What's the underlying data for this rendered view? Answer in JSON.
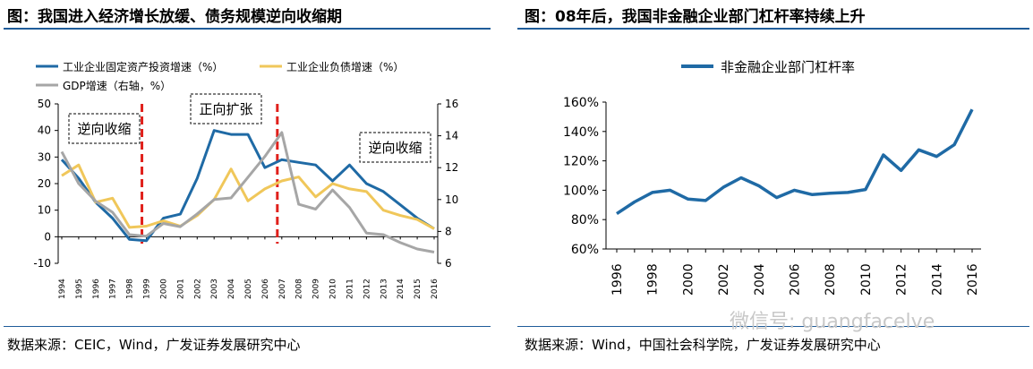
{
  "left_panel": {
    "title": "图：我国进入经济增长放缓、债务规模逆向收缩期",
    "source": "数据来源：CEIC，Wind，广发证券发展研究中心"
  },
  "right_panel": {
    "title": "图：08年后，我国非金融企业部门杠杆率持续上升",
    "source": "数据来源：Wind，中国社会科学院，广发证券发展研究中心"
  },
  "watermark": "微信号: guangfacelve",
  "chart_data": [
    {
      "type": "line",
      "x": [
        "1994",
        "1995",
        "1996",
        "1997",
        "1998",
        "1999",
        "2000",
        "2001",
        "2002",
        "2003",
        "2004",
        "2005",
        "2006",
        "2007",
        "2008",
        "2009",
        "2010",
        "2011",
        "2012",
        "2013",
        "2014",
        "2015",
        "2016"
      ],
      "series": [
        {
          "name": "工业企业固定资产投资增速（%）",
          "axis": "left",
          "color": "#1f6aa5",
          "values": [
            29,
            22,
            13,
            7,
            -1,
            -1.5,
            7,
            8.5,
            22,
            40,
            38.5,
            38.5,
            26,
            29,
            28,
            27,
            21,
            27,
            20,
            17,
            12,
            7,
            3
          ]
        },
        {
          "name": "工业企业负债增速（%）",
          "axis": "left",
          "color": "#f0c75a",
          "values": [
            23,
            27,
            13,
            14.5,
            3.5,
            4,
            6,
            4,
            8,
            14,
            25.5,
            13.5,
            18,
            21,
            22.5,
            15,
            20,
            18,
            17,
            10,
            8,
            6.5,
            3
          ]
        },
        {
          "name": "GDP增速（右轴，%）",
          "axis": "right",
          "color": "#a6a6a6",
          "values": [
            13,
            11,
            9.9,
            9.2,
            7.8,
            7.7,
            8.5,
            8.3,
            9.1,
            10,
            10.1,
            11.4,
            12.7,
            14.2,
            9.7,
            9.4,
            10.6,
            9.5,
            7.9,
            7.8,
            7.3,
            6.9,
            6.7
          ]
        }
      ],
      "ylim_left": [
        -10,
        50
      ],
      "yticks_left": [
        -10,
        0,
        10,
        20,
        30,
        40,
        50
      ],
      "ylim_right": [
        6,
        16
      ],
      "yticks_right": [
        6,
        8,
        10,
        12,
        14,
        16
      ],
      "vlines_at": [
        "1999",
        "2007"
      ],
      "annotations": [
        {
          "text": "逆向收缩",
          "near": "1995"
        },
        {
          "text": "正向扩张",
          "near": "2004"
        },
        {
          "text": "逆向收缩",
          "near": "2013"
        }
      ],
      "legend_position": "top",
      "grid": false
    },
    {
      "type": "line",
      "x": [
        1996,
        1997,
        1998,
        1999,
        2000,
        2001,
        2002,
        2003,
        2004,
        2005,
        2006,
        2007,
        2008,
        2009,
        2010,
        2011,
        2012,
        2013,
        2014,
        2015,
        2016
      ],
      "series": [
        {
          "name": "非金融企业部门杠杆率",
          "color": "#1f6aa5",
          "values": [
            84,
            92,
            98.5,
            100,
            94,
            93,
            102,
            108.5,
            103,
            95,
            100,
            97,
            98,
            98.5,
            100.5,
            124,
            113.5,
            127.5,
            123,
            131,
            155
          ]
        }
      ],
      "ylim": [
        60,
        160
      ],
      "yticks": [
        "60%",
        "80%",
        "100%",
        "120%",
        "140%",
        "160%"
      ],
      "xticks": [
        "1996",
        "1998",
        "2000",
        "2002",
        "2004",
        "2006",
        "2008",
        "2010",
        "2012",
        "2014",
        "2016"
      ],
      "legend_position": "top",
      "grid": false
    }
  ]
}
